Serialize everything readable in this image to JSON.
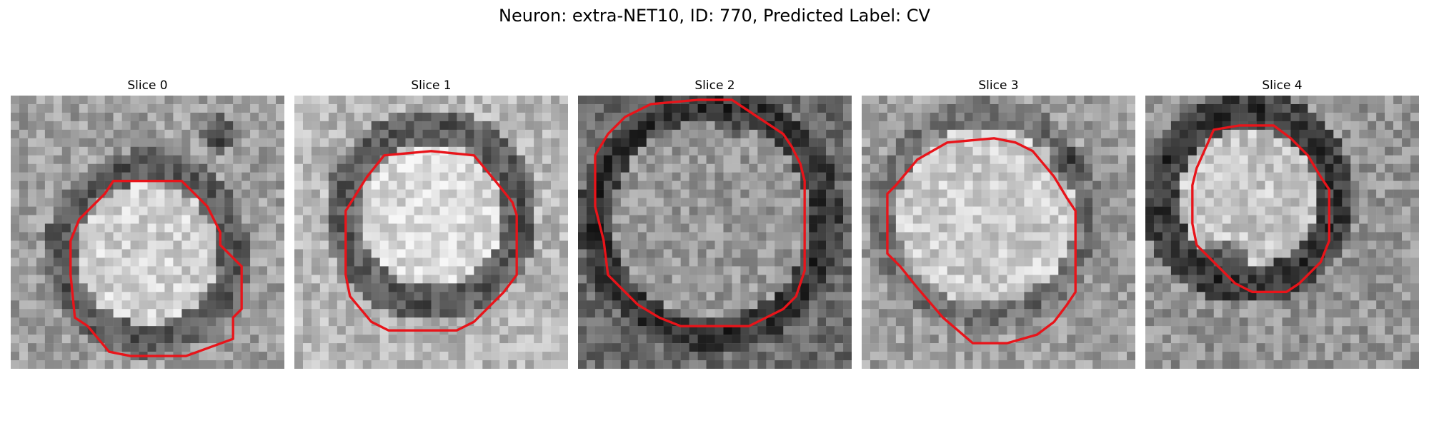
{
  "figure": {
    "title": "Neuron: extra-NET10, ID: 770, Predicted Label: CV"
  },
  "contour_color": "#e8141a",
  "colormap": "gray",
  "slices": [
    {
      "title": "Slice 0"
    },
    {
      "title": "Slice 1"
    },
    {
      "title": "Slice 2"
    },
    {
      "title": "Slice 3"
    },
    {
      "title": "Slice 4"
    }
  ]
}
